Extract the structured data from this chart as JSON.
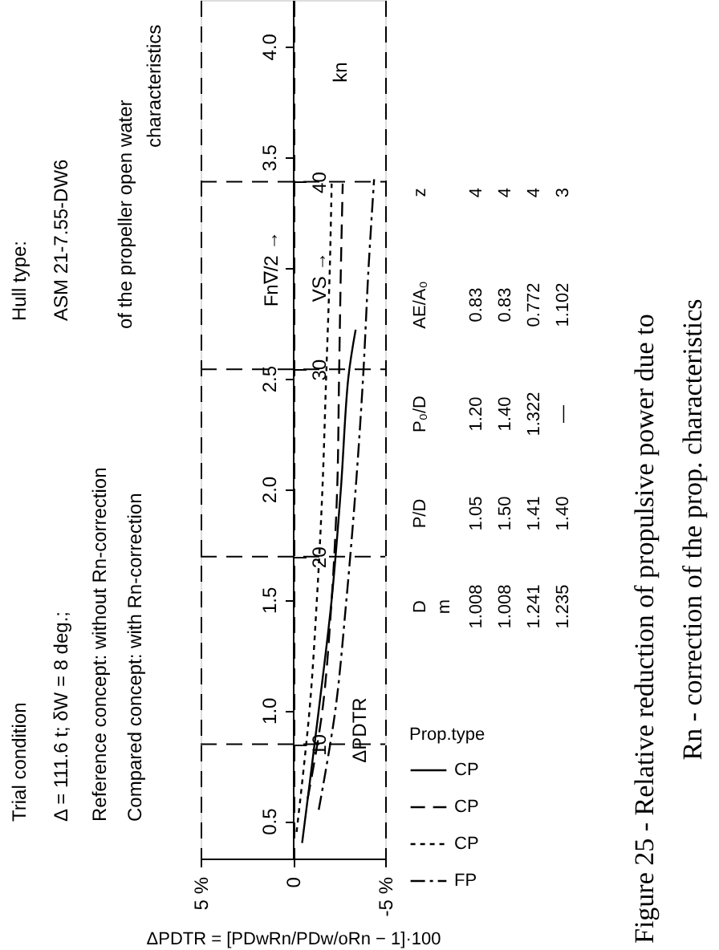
{
  "chart_data": {
    "type": "line",
    "orientation": "horizontal",
    "xlabel": "ΔPDTR = [PDwRn/PDw/oRn − 1]·100",
    "ylabel": "Fn∇/2 →",
    "y2label": "VS →",
    "xlim": [
      5,
      -5
    ],
    "xticks": [
      {
        "value": 5,
        "label": "5 %"
      },
      0,
      {
        "value": -5,
        "label": "-5 %"
      }
    ],
    "ylim": [
      0.33,
      4.21
    ],
    "yticks": [
      0.5,
      {
        "value": 1,
        "label": "1.0"
      },
      1.5,
      {
        "value": 2,
        "label": "2.0"
      },
      2.5,
      {
        "value": 3,
        "label": null
      },
      3.5,
      {
        "value": 4,
        "label": "4.0"
      }
    ],
    "y2lim": [
      3.9,
      49.7
    ],
    "y2ticks": [
      10,
      20,
      30,
      40
    ],
    "grid": true,
    "legend": "right",
    "legend_title": "Prop.type",
    "series": [
      {
        "name": "CP",
        "color": "#000000",
        "line_style": "solid",
        "x": [
          0.4,
          1.0,
          1.5,
          2.0,
          2.5,
          2.72
        ],
        "values": [
          -0.5,
          -1.4,
          -2.1,
          -2.6,
          -3.0,
          -3.4
        ]
      },
      {
        "name": "CP",
        "color": "#000000",
        "line_style": "dashed",
        "x": [
          0.6,
          1.0,
          1.5,
          2.0,
          2.5,
          3.0,
          3.38
        ],
        "values": [
          -0.8,
          -1.6,
          -2.1,
          -2.4,
          -2.5,
          -2.6,
          -2.7
        ]
      },
      {
        "name": "CP",
        "color": "#000000",
        "line_style": "dotted",
        "x": [
          0.45,
          1.0,
          1.5,
          2.0,
          2.5,
          3.0,
          3.38
        ],
        "values": [
          -0.2,
          -0.9,
          -1.3,
          -1.6,
          -1.8,
          -2.0,
          -2.1
        ]
      },
      {
        "name": "FP",
        "color": "#000000",
        "line_style": "dashdot",
        "x": [
          0.55,
          1.0,
          1.5,
          2.0,
          2.5,
          3.0,
          3.4
        ],
        "values": [
          -1.4,
          -2.3,
          -2.9,
          -3.4,
          -3.8,
          -4.1,
          -4.4
        ]
      }
    ],
    "annotations": [
      "Trial condition",
      "Δ = 111.6 t; δW = 8 deg.;",
      "Reference concept: without Rn-correction",
      "Compared concept: with Rn-correction",
      "of the propeller open water",
      "characteristics",
      "Hull type:",
      "ASM 21-7.55-DW6",
      "ΔPDTR",
      "kn",
      "D",
      "m",
      "P/D",
      "P₀/D",
      "AE/A₀",
      "z",
      "1.008",
      "1.05",
      "1.20",
      "0.83",
      "4",
      "1.008",
      "1.50",
      "1.40",
      "0.83",
      "4",
      "1.241",
      "1.41",
      "1.322",
      "0.772",
      "4",
      "1.235",
      "1.40",
      "—",
      "1.102",
      "3",
      "Figure 25 - Relative reduction of propulsive power due to",
      "Rn - correction of the prop. characteristics"
    ]
  }
}
